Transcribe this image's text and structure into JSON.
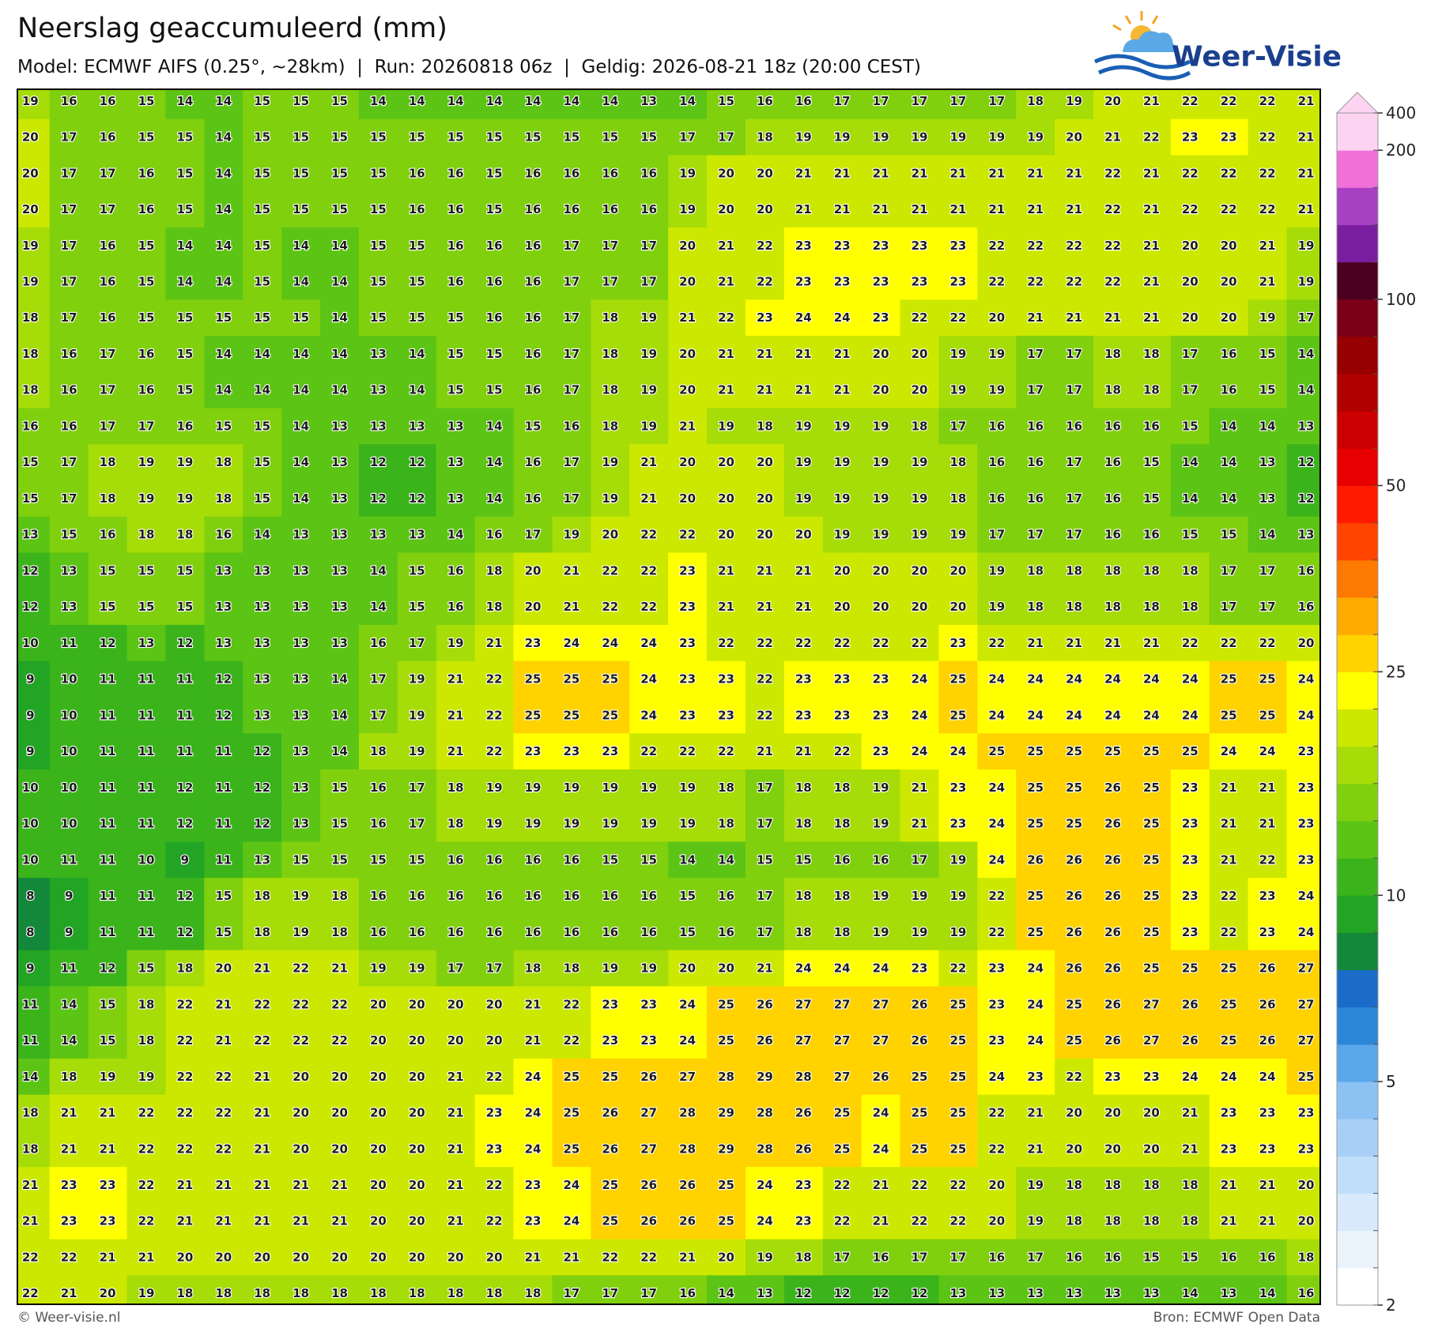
{
  "header": {
    "title": "Neerslag geaccumuleerd (mm)",
    "subtitle": "Model: ECMWF AIFS (0.25°, ~28km)  |  Run: 20260818 06z  |  Geldig: 2026-08-21 18z (20:00 CEST)",
    "logo": "Weer-Visie"
  },
  "grid": {
    "rows": [
      [
        19,
        16,
        16,
        15,
        14,
        14,
        15,
        15,
        15,
        14,
        14,
        14,
        14,
        14,
        14,
        14,
        13,
        14,
        15,
        16,
        16,
        17,
        17,
        17,
        17,
        17,
        18,
        19,
        20,
        21,
        22,
        22,
        22,
        21
      ],
      [
        20,
        17,
        16,
        15,
        15,
        14,
        15,
        15,
        15,
        15,
        15,
        15,
        15,
        15,
        15,
        15,
        15,
        17,
        17,
        18,
        19,
        19,
        19,
        19,
        19,
        19,
        19,
        20,
        21,
        22,
        23,
        23,
        22,
        21
      ],
      [
        20,
        17,
        17,
        16,
        15,
        14,
        15,
        15,
        15,
        15,
        16,
        16,
        15,
        16,
        16,
        16,
        16,
        19,
        20,
        20,
        21,
        21,
        21,
        21,
        21,
        21,
        21,
        21,
        22,
        21,
        22,
        22,
        22,
        21
      ],
      [
        20,
        17,
        17,
        16,
        15,
        14,
        15,
        15,
        15,
        15,
        16,
        16,
        15,
        16,
        16,
        16,
        16,
        19,
        20,
        20,
        21,
        21,
        21,
        21,
        21,
        21,
        21,
        21,
        22,
        21,
        22,
        22,
        22,
        21
      ],
      [
        19,
        17,
        16,
        15,
        14,
        14,
        15,
        14,
        14,
        15,
        15,
        16,
        16,
        16,
        17,
        17,
        17,
        20,
        21,
        22,
        23,
        23,
        23,
        23,
        23,
        22,
        22,
        22,
        22,
        21,
        20,
        20,
        21,
        19
      ],
      [
        19,
        17,
        16,
        15,
        14,
        14,
        15,
        14,
        14,
        15,
        15,
        16,
        16,
        16,
        17,
        17,
        17,
        20,
        21,
        22,
        23,
        23,
        23,
        23,
        23,
        22,
        22,
        22,
        22,
        21,
        20,
        20,
        21,
        19
      ],
      [
        18,
        17,
        16,
        15,
        15,
        15,
        15,
        15,
        14,
        15,
        15,
        15,
        16,
        16,
        17,
        18,
        19,
        21,
        22,
        23,
        24,
        24,
        23,
        22,
        22,
        20,
        21,
        21,
        21,
        21,
        20,
        20,
        19,
        17
      ],
      [
        18,
        16,
        17,
        16,
        15,
        14,
        14,
        14,
        14,
        13,
        14,
        15,
        15,
        16,
        17,
        18,
        19,
        20,
        21,
        21,
        21,
        21,
        20,
        20,
        19,
        19,
        17,
        17,
        18,
        18,
        17,
        16,
        15,
        14
      ],
      [
        18,
        16,
        17,
        16,
        15,
        14,
        14,
        14,
        14,
        13,
        14,
        15,
        15,
        16,
        17,
        18,
        19,
        20,
        21,
        21,
        21,
        21,
        20,
        20,
        19,
        19,
        17,
        17,
        18,
        18,
        17,
        16,
        15,
        14
      ],
      [
        16,
        16,
        17,
        17,
        16,
        15,
        15,
        14,
        13,
        13,
        13,
        13,
        14,
        15,
        16,
        18,
        19,
        21,
        19,
        18,
        19,
        19,
        19,
        18,
        17,
        16,
        16,
        16,
        16,
        16,
        15,
        14,
        14,
        13
      ],
      [
        15,
        17,
        18,
        19,
        19,
        18,
        15,
        14,
        13,
        12,
        12,
        13,
        14,
        16,
        17,
        19,
        21,
        20,
        20,
        20,
        19,
        19,
        19,
        19,
        18,
        16,
        16,
        17,
        16,
        15,
        14,
        14,
        13,
        12
      ],
      [
        15,
        17,
        18,
        19,
        19,
        18,
        15,
        14,
        13,
        12,
        12,
        13,
        14,
        16,
        17,
        19,
        21,
        20,
        20,
        20,
        19,
        19,
        19,
        19,
        18,
        16,
        16,
        17,
        16,
        15,
        14,
        14,
        13,
        12
      ],
      [
        13,
        15,
        16,
        18,
        18,
        16,
        14,
        13,
        13,
        13,
        13,
        14,
        16,
        17,
        19,
        20,
        22,
        22,
        20,
        20,
        20,
        19,
        19,
        19,
        19,
        17,
        17,
        17,
        16,
        16,
        15,
        15,
        14,
        13
      ],
      [
        12,
        13,
        15,
        15,
        15,
        13,
        13,
        13,
        13,
        14,
        15,
        16,
        18,
        20,
        21,
        22,
        22,
        23,
        21,
        21,
        21,
        20,
        20,
        20,
        20,
        19,
        18,
        18,
        18,
        18,
        18,
        17,
        17,
        16
      ],
      [
        12,
        13,
        15,
        15,
        15,
        13,
        13,
        13,
        13,
        14,
        15,
        16,
        18,
        20,
        21,
        22,
        22,
        23,
        21,
        21,
        21,
        20,
        20,
        20,
        20,
        19,
        18,
        18,
        18,
        18,
        18,
        17,
        17,
        16
      ],
      [
        10,
        11,
        12,
        13,
        12,
        13,
        13,
        13,
        13,
        16,
        17,
        19,
        21,
        23,
        24,
        24,
        24,
        23,
        22,
        22,
        22,
        22,
        22,
        22,
        23,
        22,
        21,
        21,
        21,
        21,
        22,
        22,
        22,
        20
      ],
      [
        9,
        10,
        11,
        11,
        11,
        12,
        13,
        13,
        14,
        17,
        19,
        21,
        22,
        25,
        25,
        25,
        24,
        23,
        23,
        22,
        23,
        23,
        23,
        24,
        25,
        24,
        24,
        24,
        24,
        24,
        24,
        25,
        25,
        24
      ],
      [
        9,
        10,
        11,
        11,
        11,
        12,
        13,
        13,
        14,
        17,
        19,
        21,
        22,
        25,
        25,
        25,
        24,
        23,
        23,
        22,
        23,
        23,
        23,
        24,
        25,
        24,
        24,
        24,
        24,
        24,
        24,
        25,
        25,
        24
      ],
      [
        9,
        10,
        11,
        11,
        11,
        11,
        12,
        13,
        14,
        18,
        19,
        21,
        22,
        23,
        23,
        23,
        22,
        22,
        22,
        21,
        21,
        22,
        23,
        24,
        24,
        25,
        25,
        25,
        25,
        25,
        25,
        24,
        24,
        23
      ],
      [
        10,
        10,
        11,
        11,
        12,
        11,
        12,
        13,
        15,
        16,
        17,
        18,
        19,
        19,
        19,
        19,
        19,
        19,
        18,
        17,
        18,
        18,
        19,
        21,
        23,
        24,
        25,
        25,
        26,
        25,
        23,
        21,
        21,
        23
      ],
      [
        10,
        10,
        11,
        11,
        12,
        11,
        12,
        13,
        15,
        16,
        17,
        18,
        19,
        19,
        19,
        19,
        19,
        19,
        18,
        17,
        18,
        18,
        19,
        21,
        23,
        24,
        25,
        25,
        26,
        25,
        23,
        21,
        21,
        23
      ],
      [
        10,
        11,
        11,
        10,
        9,
        11,
        13,
        15,
        15,
        15,
        15,
        16,
        16,
        16,
        16,
        15,
        15,
        14,
        14,
        15,
        15,
        16,
        16,
        17,
        19,
        24,
        26,
        26,
        26,
        25,
        23,
        21,
        22,
        23
      ],
      [
        8,
        9,
        11,
        11,
        12,
        15,
        18,
        19,
        18,
        16,
        16,
        16,
        16,
        16,
        16,
        16,
        16,
        15,
        16,
        17,
        18,
        18,
        19,
        19,
        19,
        22,
        25,
        26,
        26,
        25,
        23,
        22,
        23,
        24
      ],
      [
        8,
        9,
        11,
        11,
        12,
        15,
        18,
        19,
        18,
        16,
        16,
        16,
        16,
        16,
        16,
        16,
        16,
        15,
        16,
        17,
        18,
        18,
        19,
        19,
        19,
        22,
        25,
        26,
        26,
        25,
        23,
        22,
        23,
        24
      ],
      [
        9,
        11,
        12,
        15,
        18,
        20,
        21,
        22,
        21,
        19,
        19,
        17,
        17,
        18,
        18,
        19,
        19,
        20,
        20,
        21,
        24,
        24,
        24,
        23,
        22,
        23,
        24,
        26,
        26,
        25,
        25,
        25,
        26,
        27
      ],
      [
        11,
        14,
        15,
        18,
        22,
        21,
        22,
        22,
        22,
        20,
        20,
        20,
        20,
        21,
        22,
        23,
        23,
        24,
        25,
        26,
        27,
        27,
        27,
        26,
        25,
        23,
        24,
        25,
        26,
        27,
        26,
        25,
        26,
        27
      ],
      [
        11,
        14,
        15,
        18,
        22,
        21,
        22,
        22,
        22,
        20,
        20,
        20,
        20,
        21,
        22,
        23,
        23,
        24,
        25,
        26,
        27,
        27,
        27,
        26,
        25,
        23,
        24,
        25,
        26,
        27,
        26,
        25,
        26,
        27
      ],
      [
        14,
        18,
        19,
        19,
        22,
        22,
        21,
        20,
        20,
        20,
        20,
        21,
        22,
        24,
        25,
        25,
        26,
        27,
        28,
        29,
        28,
        27,
        26,
        25,
        25,
        24,
        23,
        22,
        23,
        23,
        24,
        24,
        24,
        25
      ],
      [
        18,
        21,
        21,
        22,
        22,
        22,
        21,
        20,
        20,
        20,
        20,
        21,
        23,
        24,
        25,
        26,
        27,
        28,
        29,
        28,
        26,
        25,
        24,
        25,
        25,
        22,
        21,
        20,
        20,
        20,
        21,
        23,
        23,
        23
      ],
      [
        18,
        21,
        21,
        22,
        22,
        22,
        21,
        20,
        20,
        20,
        20,
        21,
        23,
        24,
        25,
        26,
        27,
        28,
        29,
        28,
        26,
        25,
        24,
        25,
        25,
        22,
        21,
        20,
        20,
        20,
        21,
        23,
        23,
        23
      ],
      [
        21,
        23,
        23,
        22,
        21,
        21,
        21,
        21,
        21,
        20,
        20,
        21,
        22,
        23,
        24,
        25,
        26,
        26,
        25,
        24,
        23,
        22,
        21,
        22,
        22,
        20,
        19,
        18,
        18,
        18,
        18,
        21,
        21,
        20
      ],
      [
        21,
        23,
        23,
        22,
        21,
        21,
        21,
        21,
        21,
        20,
        20,
        21,
        22,
        23,
        24,
        25,
        26,
        26,
        25,
        24,
        23,
        22,
        21,
        22,
        22,
        20,
        19,
        18,
        18,
        18,
        18,
        21,
        21,
        20
      ],
      [
        22,
        22,
        21,
        21,
        20,
        20,
        20,
        20,
        20,
        20,
        20,
        20,
        20,
        21,
        21,
        22,
        22,
        21,
        20,
        19,
        18,
        17,
        16,
        17,
        17,
        16,
        17,
        16,
        16,
        15,
        15,
        16,
        16,
        18
      ],
      [
        22,
        21,
        20,
        19,
        18,
        18,
        18,
        18,
        18,
        18,
        18,
        18,
        18,
        18,
        17,
        17,
        17,
        16,
        14,
        13,
        12,
        12,
        12,
        12,
        13,
        13,
        13,
        13,
        13,
        13,
        14,
        13,
        14,
        16
      ]
    ]
  },
  "colorbar": {
    "levels": [
      2,
      2.5,
      3,
      3.5,
      4,
      4.5,
      5,
      6,
      7,
      8,
      9,
      10,
      12.5,
      15,
      17.5,
      20,
      22.5,
      25,
      30,
      35,
      40,
      45,
      50,
      60,
      70,
      80,
      90,
      100,
      125,
      150,
      175,
      200,
      400
    ],
    "colors": [
      "#ffffff",
      "#ebf4fd",
      "#d8eafc",
      "#c0defa",
      "#a8d0f7",
      "#8cc2f3",
      "#5aa8ea",
      "#2c86d8",
      "#1a6cc8",
      "#13883a",
      "#22a424",
      "#3bb41c",
      "#5cc414",
      "#80d00e",
      "#a6dc08",
      "#cce800",
      "#ffff00",
      "#ffd200",
      "#ffaa00",
      "#ff7a00",
      "#ff4400",
      "#ff1a00",
      "#e60000",
      "#cc0000",
      "#b00000",
      "#960000",
      "#7a0018",
      "#4c0020",
      "#7a1ea0",
      "#a840c4",
      "#f070d8",
      "#fcd4f2"
    ],
    "ticks": [
      2,
      5,
      10,
      25,
      50,
      100,
      200,
      400
    ]
  },
  "footer": {
    "left": "© Weer-visie.nl",
    "right": "Bron: ECMWF Open Data"
  }
}
